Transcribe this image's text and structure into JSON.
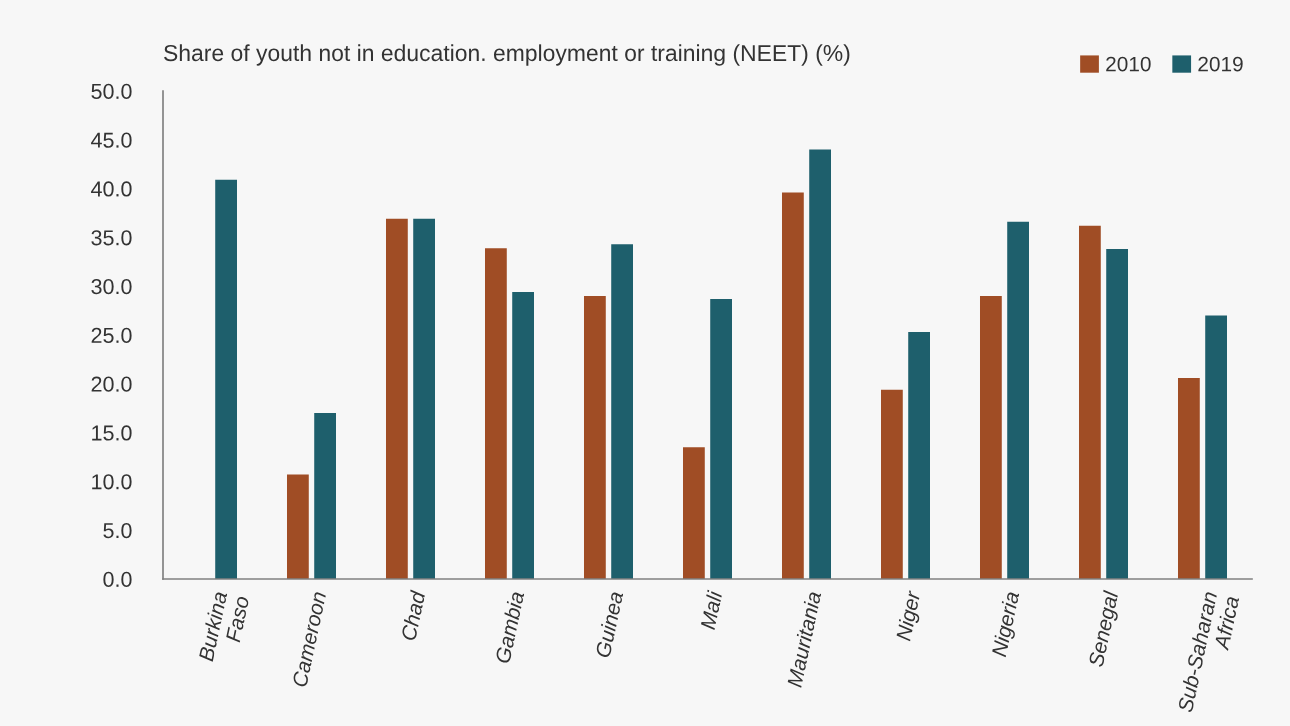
{
  "chart_data": {
    "type": "bar",
    "title": "Share of youth not in education. employment or training (NEET) (%)",
    "categories": [
      "Burkina\nFaso",
      "Cameroon",
      "Chad",
      "Gambia",
      "Guinea",
      "Mali",
      "Mauritania",
      "Niger",
      "Nigeria",
      "Senegal",
      "Sub-Saharan\nAfrica"
    ],
    "series": [
      {
        "name": "2010",
        "color": "#a04d25",
        "values": [
          null,
          10.7,
          36.9,
          33.9,
          29.0,
          13.5,
          39.6,
          19.4,
          29.0,
          36.2,
          20.6
        ]
      },
      {
        "name": "2019",
        "color": "#1e5f6c",
        "values": [
          40.9,
          17.0,
          36.9,
          29.4,
          34.3,
          28.7,
          44.0,
          25.3,
          36.6,
          33.8,
          27.0
        ]
      }
    ],
    "ylim": [
      0,
      50
    ],
    "yticks": [
      {
        "value": 0,
        "label": "0.0"
      },
      {
        "value": 5,
        "label": "5.0"
      },
      {
        "value": 10,
        "label": "10.0"
      },
      {
        "value": 15,
        "label": "15.0"
      },
      {
        "value": 20,
        "label": "20.0"
      },
      {
        "value": 25,
        "label": "25.0"
      },
      {
        "value": 30,
        "label": "30.0"
      },
      {
        "value": 35,
        "label": "35.0"
      },
      {
        "value": 40,
        "label": "40.0"
      },
      {
        "value": 45,
        "label": "45.0"
      },
      {
        "value": 50,
        "label": "50.0"
      }
    ],
    "grid": false,
    "legend": "top right"
  }
}
